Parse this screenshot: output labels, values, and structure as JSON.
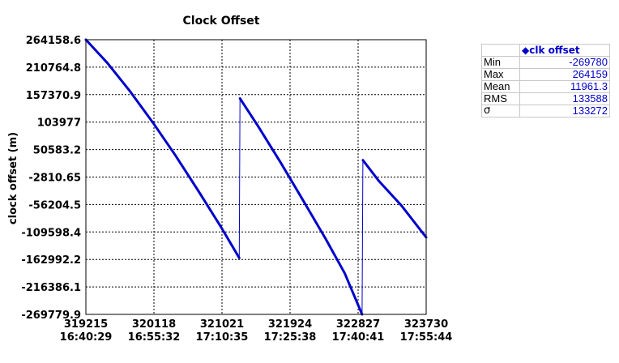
{
  "chart_data": {
    "type": "line",
    "title": "Clock Offset",
    "ylabel": "clock offset (m)",
    "xlabel": "",
    "grid": true,
    "line_color": "#0000cc",
    "xlim": [
      319215,
      323730
    ],
    "ylim": [
      -269779.9,
      264158.6
    ],
    "x_ticks": [
      {
        "value": 319215,
        "line1": "319215",
        "line2": "16:40:29"
      },
      {
        "value": 320118,
        "line1": "320118",
        "line2": "16:55:32"
      },
      {
        "value": 321021,
        "line1": "321021",
        "line2": "17:10:35"
      },
      {
        "value": 321924,
        "line1": "321924",
        "line2": "17:25:38"
      },
      {
        "value": 322827,
        "line1": "322827",
        "line2": "17:40:41"
      },
      {
        "value": 323730,
        "line1": "323730",
        "line2": "17:55:44"
      }
    ],
    "y_ticks": [
      {
        "value": 264158.6,
        "label": "264158.6"
      },
      {
        "value": 210764.8,
        "label": "210764.8"
      },
      {
        "value": 157370.9,
        "label": "157370.9"
      },
      {
        "value": 103977,
        "label": "103977"
      },
      {
        "value": 50583.2,
        "label": "50583.2"
      },
      {
        "value": -2810.65,
        "label": "-2810.65"
      },
      {
        "value": -56204.5,
        "label": "-56204.5"
      },
      {
        "value": -109598.4,
        "label": "-109598.4"
      },
      {
        "value": -162992.2,
        "label": "-162992.2"
      },
      {
        "value": -216386.1,
        "label": "-216386.1"
      },
      {
        "value": -269779.9,
        "label": "-269779.9"
      }
    ],
    "series": [
      {
        "name": "clk offset",
        "segments": [
          [
            [
              319215,
              264158.6
            ],
            [
              319500,
              219000
            ],
            [
              319800,
              164000
            ],
            [
              320100,
              104000
            ],
            [
              320400,
              40000
            ],
            [
              320700,
              -28000
            ],
            [
              321000,
              -98000
            ],
            [
              321250,
              -160000
            ]
          ],
          [
            [
              321250,
              -160000
            ],
            [
              321260,
              150000
            ]
          ],
          [
            [
              321260,
              150000
            ],
            [
              321500,
              96000
            ],
            [
              321800,
              25000
            ],
            [
              322100,
              -49000
            ],
            [
              322400,
              -124000
            ],
            [
              322650,
              -190000
            ],
            [
              322880,
              -269779.9
            ]
          ],
          [
            [
              322880,
              -269779.9
            ],
            [
              322890,
              30000
            ]
          ],
          [
            [
              322890,
              30000
            ],
            [
              323100,
              -10000
            ],
            [
              323400,
              -58000
            ],
            [
              323730,
              -120000
            ]
          ]
        ]
      }
    ]
  },
  "legend": {
    "marker": "◆",
    "series_label": "clk offset",
    "rows": [
      {
        "label": "Min",
        "value": "-269780"
      },
      {
        "label": "Max",
        "value": "264159"
      },
      {
        "label": "Mean",
        "value": "11961.3"
      },
      {
        "label": "RMS",
        "value": "133588"
      },
      {
        "label": "σ",
        "value": "133272"
      }
    ]
  }
}
